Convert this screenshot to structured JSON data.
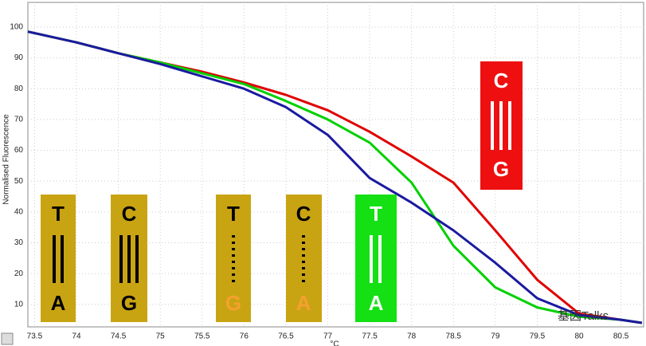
{
  "chart_data": {
    "type": "line",
    "y_label": "Normalised Fluorescence",
    "x_label": "°C",
    "x": [
      73.42,
      74,
      74.5,
      75,
      75.5,
      76,
      76.5,
      77,
      77.5,
      78,
      78.5,
      79,
      79.5,
      80,
      80.5,
      80.75
    ],
    "series": [
      {
        "color": "#e00000",
        "values": [
          98.5,
          95,
          91.5,
          88.5,
          85.5,
          82,
          78,
          73,
          66,
          58,
          49.5,
          34,
          18,
          7,
          5,
          4
        ]
      },
      {
        "color": "#00d000",
        "values": [
          98.5,
          95,
          91.5,
          88.5,
          85,
          81.5,
          76,
          70,
          62.5,
          49.5,
          29,
          15.5,
          9,
          6,
          5,
          4
        ]
      },
      {
        "color": "#1a1aa0",
        "values": [
          98.5,
          95,
          91.5,
          88,
          84,
          80,
          74,
          65,
          51,
          43,
          34,
          23.5,
          12,
          6.5,
          5,
          4
        ]
      }
    ],
    "xlim": [
      73.42,
      80.77
    ],
    "xticks": [
      73.5,
      74,
      74.5,
      75,
      75.5,
      76,
      76.5,
      77,
      77.5,
      78,
      78.5,
      79,
      79.5,
      80,
      80.5
    ],
    "ylim": [
      2.7,
      108
    ],
    "yticks": [
      10,
      20,
      30,
      40,
      50,
      60,
      70,
      80,
      90,
      100
    ],
    "grid": true,
    "annotations": [
      {
        "top": "T",
        "bottom": "A"
      },
      {
        "top": "C",
        "bottom": "G"
      },
      {
        "top": "T",
        "bottom": "G"
      },
      {
        "top": "C",
        "bottom": "A"
      },
      {
        "top": "T",
        "bottom": "A"
      },
      {
        "top": "C",
        "bottom": "G"
      }
    ],
    "watermark": "基因Talks"
  }
}
